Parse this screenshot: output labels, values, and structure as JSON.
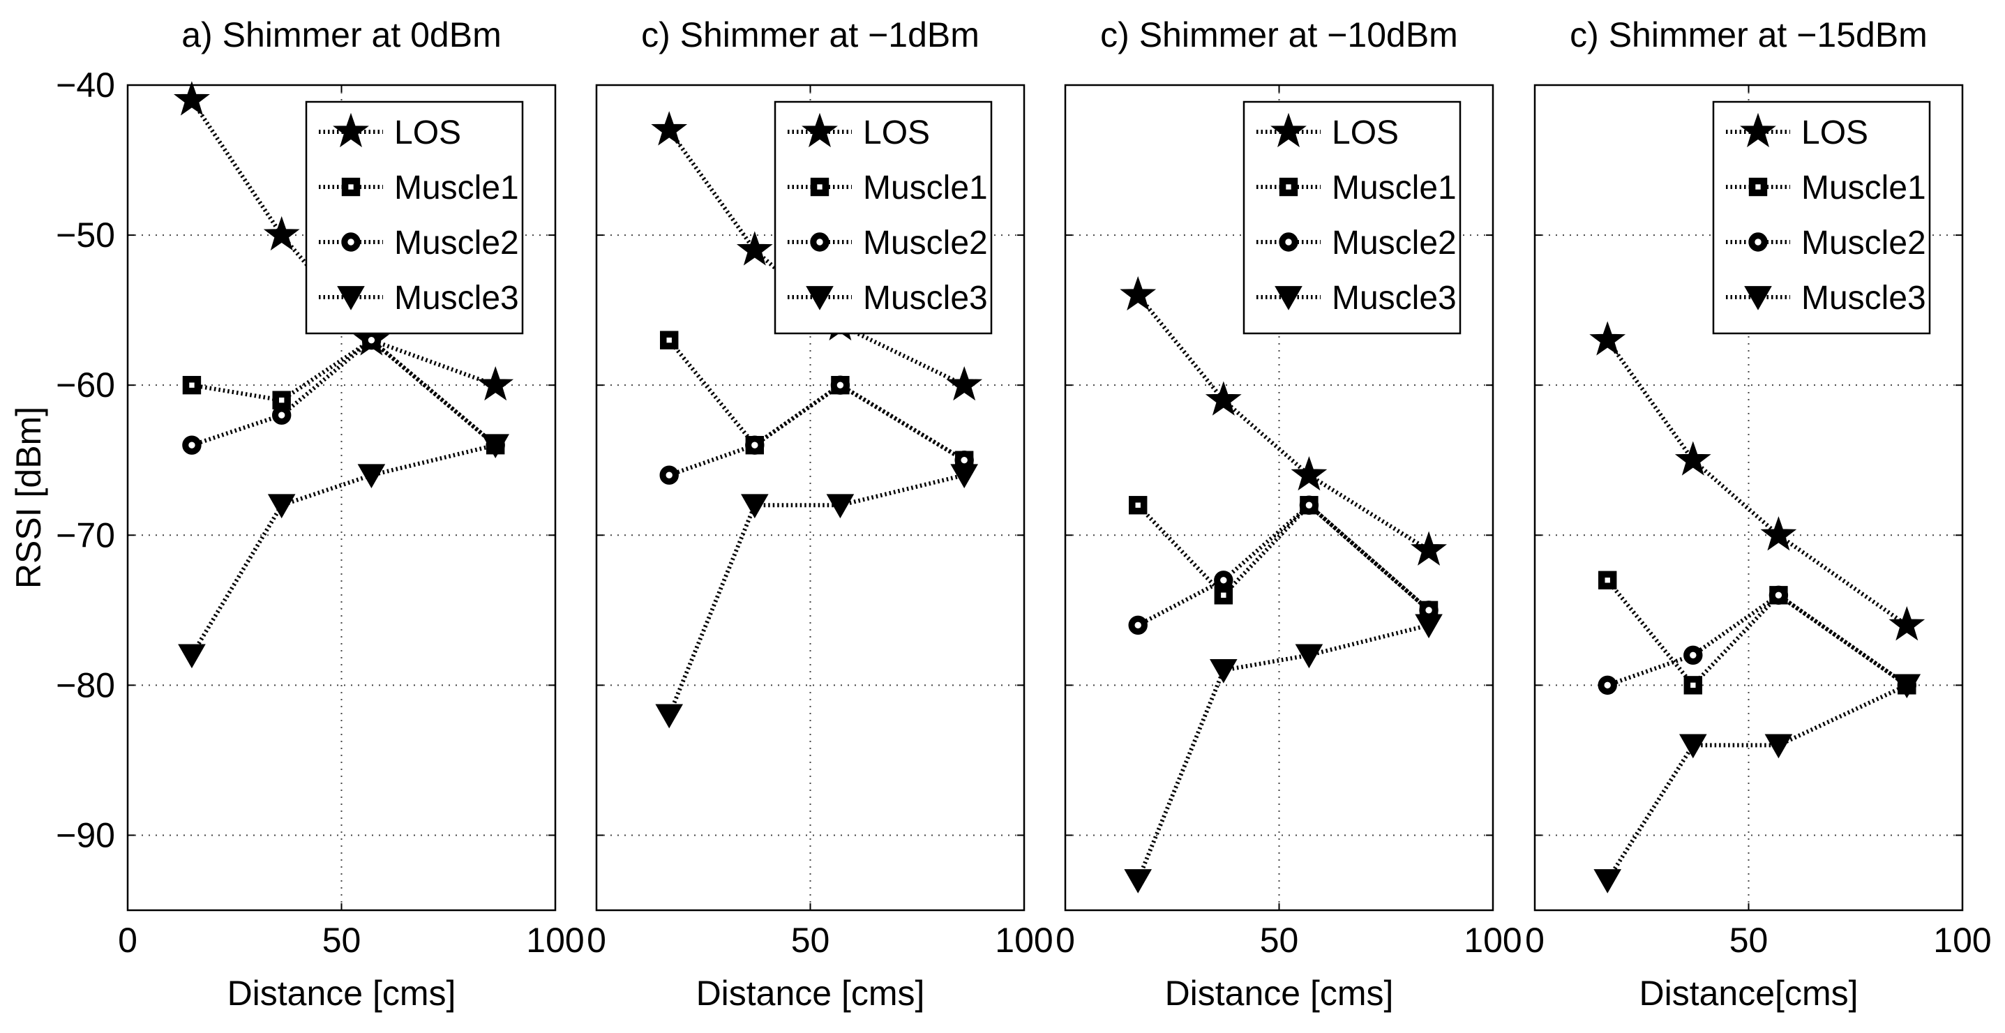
{
  "chart_data": [
    {
      "type": "line",
      "title": "a) Shimmer at 0dBm",
      "xlabel": "Distance [cms]",
      "ylabel": "RSSI [dBm]",
      "xlim": [
        0,
        100
      ],
      "ylim": [
        -95,
        -40
      ],
      "xticks": [
        0,
        50,
        100
      ],
      "xtick_labels": [
        "0",
        "50",
        "100"
      ],
      "yticks": [
        -40,
        -50,
        -60,
        -70,
        -80,
        -90
      ],
      "ytick_labels": [
        "-40",
        "-50",
        "-60",
        "-70",
        "-80",
        "-90"
      ],
      "grid": true,
      "legend_position": "top-right",
      "series": [
        {
          "name": "LOS",
          "marker": "star",
          "x": [
            15,
            36,
            57,
            86
          ],
          "y": [
            -41,
            -50,
            -57,
            -60
          ]
        },
        {
          "name": "Muscle1",
          "marker": "square",
          "x": [
            15,
            36,
            57,
            86
          ],
          "y": [
            -60,
            -61,
            -57,
            -64
          ]
        },
        {
          "name": "Muscle2",
          "marker": "circle",
          "x": [
            15,
            36,
            57,
            86
          ],
          "y": [
            -64,
            -62,
            -57,
            -64
          ]
        },
        {
          "name": "Muscle3",
          "marker": "triangle-down",
          "x": [
            15,
            36,
            57,
            86
          ],
          "y": [
            -78,
            -68,
            -66,
            -64
          ]
        }
      ]
    },
    {
      "type": "line",
      "title": "c) Shimmer at −1dBm",
      "xlabel": "Distance [cms]",
      "ylabel": "",
      "xlim": [
        0,
        100
      ],
      "ylim": [
        -95,
        -40
      ],
      "xticks": [
        0,
        50,
        100
      ],
      "xtick_labels": [
        "0",
        "50",
        "100"
      ],
      "yticks": [
        -40,
        -50,
        -60,
        -70,
        -80,
        -90
      ],
      "ytick_labels": [],
      "grid": true,
      "legend_position": "top-right",
      "series": [
        {
          "name": "LOS",
          "marker": "star",
          "x": [
            17,
            37,
            57,
            86
          ],
          "y": [
            -43,
            -51,
            -56,
            -60
          ]
        },
        {
          "name": "Muscle1",
          "marker": "square",
          "x": [
            17,
            37,
            57,
            86
          ],
          "y": [
            -57,
            -64,
            -60,
            -65
          ]
        },
        {
          "name": "Muscle2",
          "marker": "circle",
          "x": [
            17,
            37,
            57,
            86
          ],
          "y": [
            -66,
            -64,
            -60,
            -65
          ]
        },
        {
          "name": "Muscle3",
          "marker": "triangle-down",
          "x": [
            17,
            37,
            57,
            86
          ],
          "y": [
            -82,
            -68,
            -68,
            -66
          ]
        }
      ]
    },
    {
      "type": "line",
      "title": "c) Shimmer at −10dBm",
      "xlabel": "Distance [cms]",
      "ylabel": "",
      "xlim": [
        0,
        100
      ],
      "ylim": [
        -95,
        -40
      ],
      "xticks": [
        0,
        50,
        100
      ],
      "xtick_labels": [
        "0",
        "50",
        "100"
      ],
      "yticks": [
        -40,
        -50,
        -60,
        -70,
        -80,
        -90
      ],
      "ytick_labels": [],
      "grid": true,
      "legend_position": "top-right",
      "series": [
        {
          "name": "LOS",
          "marker": "star",
          "x": [
            17,
            37,
            57,
            85
          ],
          "y": [
            -54,
            -61,
            -66,
            -71
          ]
        },
        {
          "name": "Muscle1",
          "marker": "square",
          "x": [
            17,
            37,
            57,
            85
          ],
          "y": [
            -68,
            -74,
            -68,
            -75
          ]
        },
        {
          "name": "Muscle2",
          "marker": "circle",
          "x": [
            17,
            37,
            57,
            85
          ],
          "y": [
            -76,
            -73,
            -68,
            -75
          ]
        },
        {
          "name": "Muscle3",
          "marker": "triangle-down",
          "x": [
            17,
            37,
            57,
            85
          ],
          "y": [
            -93,
            -79,
            -78,
            -76
          ]
        }
      ]
    },
    {
      "type": "line",
      "title": "c) Shimmer at −15dBm",
      "xlabel": "Distance[cms]",
      "ylabel": "",
      "xlim": [
        0,
        100
      ],
      "ylim": [
        -95,
        -40
      ],
      "xticks": [
        0,
        50,
        100
      ],
      "xtick_labels": [
        "0",
        "50",
        "100"
      ],
      "yticks": [
        -40,
        -50,
        -60,
        -70,
        -80,
        -90
      ],
      "ytick_labels": [],
      "grid": true,
      "legend_position": "top-right",
      "series": [
        {
          "name": "LOS",
          "marker": "star",
          "x": [
            17,
            37,
            57,
            87
          ],
          "y": [
            -57,
            -65,
            -70,
            -76
          ]
        },
        {
          "name": "Muscle1",
          "marker": "square",
          "x": [
            17,
            37,
            57,
            87
          ],
          "y": [
            -73,
            -80,
            -74,
            -80
          ]
        },
        {
          "name": "Muscle2",
          "marker": "circle",
          "x": [
            17,
            37,
            57,
            87
          ],
          "y": [
            -80,
            -78,
            -74,
            -80
          ]
        },
        {
          "name": "Muscle3",
          "marker": "triangle-down",
          "x": [
            17,
            37,
            57,
            87
          ],
          "y": [
            -93,
            -84,
            -84,
            -80
          ]
        }
      ]
    }
  ]
}
